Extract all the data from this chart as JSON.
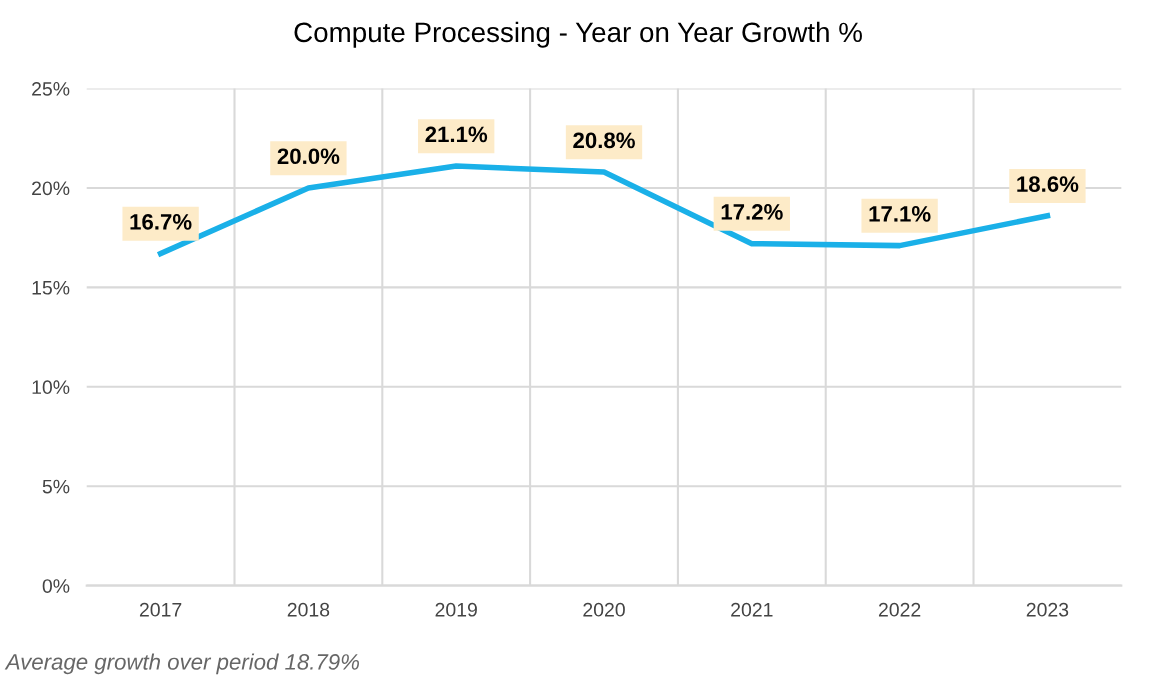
{
  "chart_data": {
    "type": "line",
    "title": "Compute Processing - Year on Year Growth %",
    "categories": [
      "2017",
      "2018",
      "2019",
      "2020",
      "2021",
      "2022",
      "2023"
    ],
    "series": [
      {
        "color": "#1ab0e8",
        "values": [
          16.7,
          20.0,
          21.1,
          20.8,
          17.2,
          17.1,
          18.6
        ],
        "value_labels": [
          "16.7%",
          "20.0%",
          "21.1%",
          "20.8%",
          "17.2%",
          "17.1%",
          "18.6%"
        ]
      }
    ],
    "ylim": [
      0,
      25
    ],
    "yticks": [
      {
        "value": 0,
        "label": "0%"
      },
      {
        "value": 5,
        "label": "5%"
      },
      {
        "value": 10,
        "label": "10%"
      },
      {
        "value": 15,
        "label": "15%"
      },
      {
        "value": 20,
        "label": "20%"
      },
      {
        "value": 25,
        "label": "25%"
      }
    ],
    "grid": true,
    "line_style": "solid",
    "annotations": [
      "Average growth over period 18.79%"
    ]
  }
}
